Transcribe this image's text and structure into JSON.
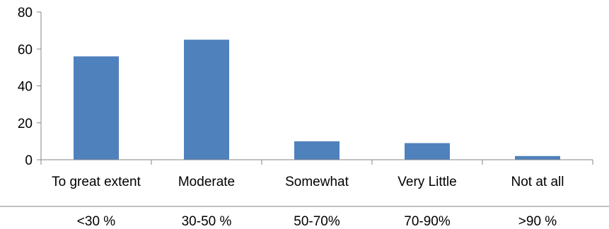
{
  "chart_data": {
    "type": "bar",
    "categories": [
      "To great extent",
      "Moderate",
      "Somewhat",
      "Very Little",
      "Not at all"
    ],
    "secondary_labels": [
      "<30 %",
      "30-50 %",
      "50-70%",
      "70-90%",
      ">90 %"
    ],
    "values": [
      56,
      65,
      10,
      9,
      2
    ],
    "ylim": [
      0,
      80
    ],
    "yticks": [
      0,
      20,
      40,
      60,
      80
    ],
    "grid": false,
    "legend": "none",
    "bar_color": "#4F81BD"
  }
}
